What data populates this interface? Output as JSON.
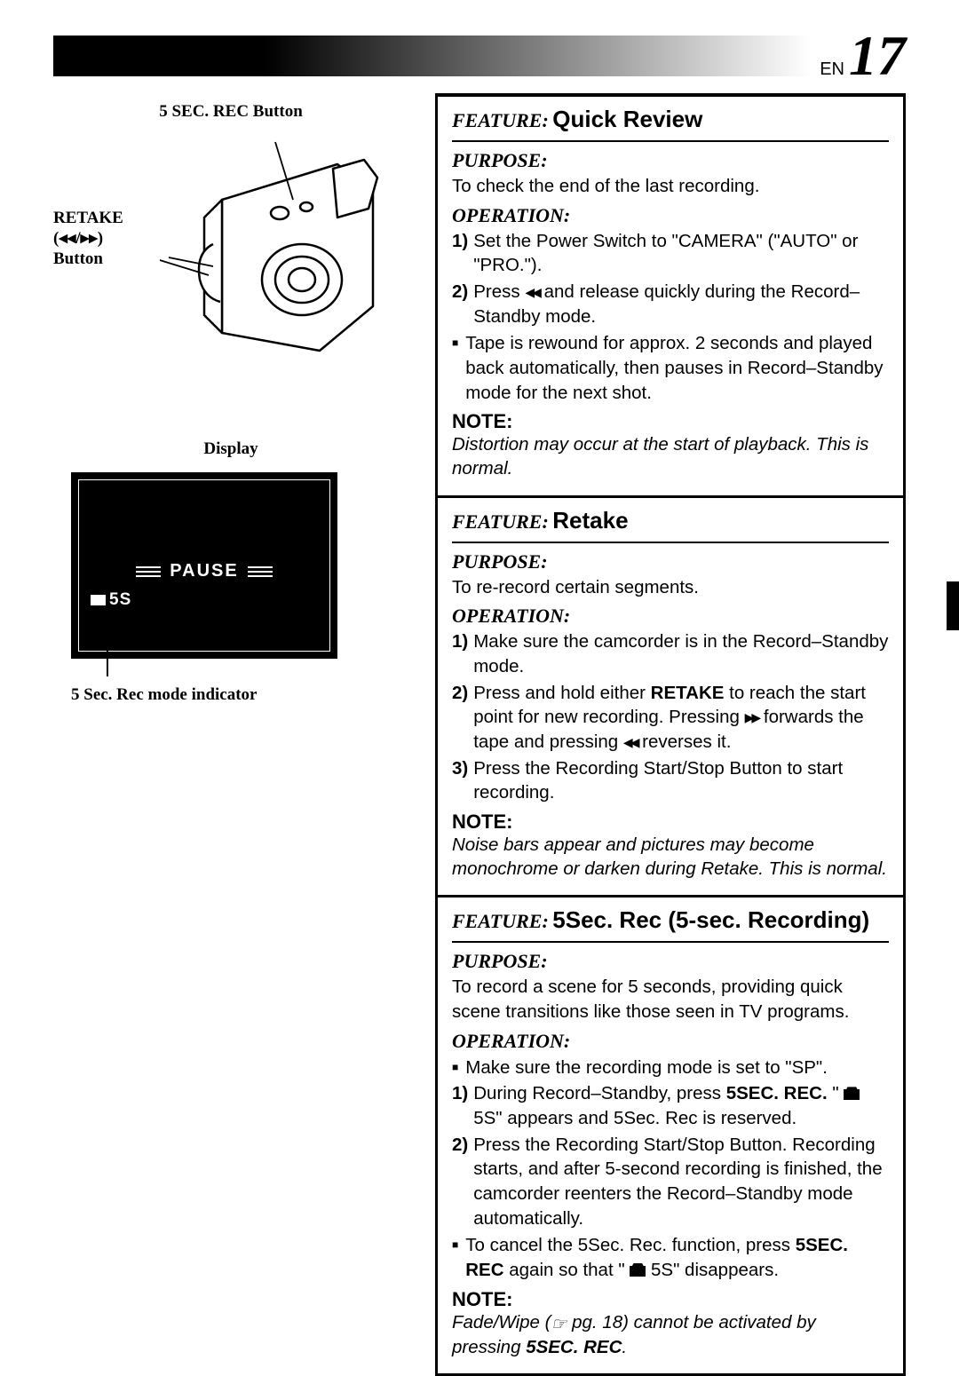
{
  "page": {
    "lang": "EN",
    "number": "17"
  },
  "diagram": {
    "top_label": "5 SEC. REC Button",
    "retake_label_l1": "RETAKE",
    "retake_label_l2": "(◂◂/▸▸)",
    "retake_label_l3": "Button",
    "display_label": "Display",
    "pause_text": "PAUSE",
    "five_s_text": "5S",
    "indicator_label": "5 Sec. Rec mode indicator"
  },
  "features": [
    {
      "kw": "FEATURE:",
      "title": "Quick Review",
      "purpose_hd": "PURPOSE:",
      "purpose": "To check the end of the last recording.",
      "operation_hd": "OPERATION:",
      "steps": [
        {
          "n": "1)",
          "html": "Set the Power Switch to \"CAMERA\" (\"AUTO\" or \"PRO.\")."
        },
        {
          "n": "2)",
          "html": "Press <span class='rew-icon'>◀◀</span> and release quickly during the Record–Standby mode."
        }
      ],
      "bullets": [
        "Tape is rewound for approx. 2 seconds and played back automatically, then pauses in Record–Standby mode for the next shot."
      ],
      "note_hd": "NOTE:",
      "note": "Distortion may occur at the start of playback. This is normal."
    },
    {
      "kw": "FEATURE:",
      "title": "Retake",
      "purpose_hd": "PURPOSE:",
      "purpose": "To re-record certain segments.",
      "operation_hd": "OPERATION:",
      "steps": [
        {
          "n": "1)",
          "html": "Make sure the camcorder is in the Record–Standby mode."
        },
        {
          "n": "2)",
          "html": "Press and hold either <b>RETAKE</b> to reach the start point for new recording. Pressing <span class='ff-icon'>▶▶</span> forwards the tape and pressing <span class='rew-icon'>◀◀</span> reverses it."
        },
        {
          "n": "3)",
          "html": "Press the Recording Start/Stop Button to start recording."
        }
      ],
      "bullets": [],
      "note_hd": "NOTE:",
      "note": "Noise bars appear and pictures may become monochrome or darken during Retake. This is normal."
    },
    {
      "kw": "FEATURE:",
      "title": "5Sec. Rec (5-sec. Recording)",
      "purpose_hd": "PURPOSE:",
      "purpose": "To record a scene for 5 seconds, providing quick scene transitions like those seen in TV programs.",
      "operation_hd": "OPERATION:",
      "pre_bullets": [
        "Make sure the recording mode is set to \"SP\"."
      ],
      "steps": [
        {
          "n": "1)",
          "html": "During Record–Standby, press <b>5SEC. REC.</b> \" <span class='tape-icon'></span> 5S\" appears and 5Sec. Rec is reserved."
        },
        {
          "n": "2)",
          "html": "Press the Recording Start/Stop Button. Recording starts, and after 5-second recording is finished, the camcorder reenters the Record–Standby mode automatically."
        }
      ],
      "bullets": [
        "To cancel the 5Sec. Rec. function, press <b>5SEC. REC</b> again so that \" <span class='tape-icon'></span> 5S\" disappears."
      ],
      "note_hd": "NOTE:",
      "note": "Fade/Wipe (<span class='ptr-icon'></span> pg. 18) cannot be activated by pressing <b>5SEC. REC</b>."
    }
  ]
}
